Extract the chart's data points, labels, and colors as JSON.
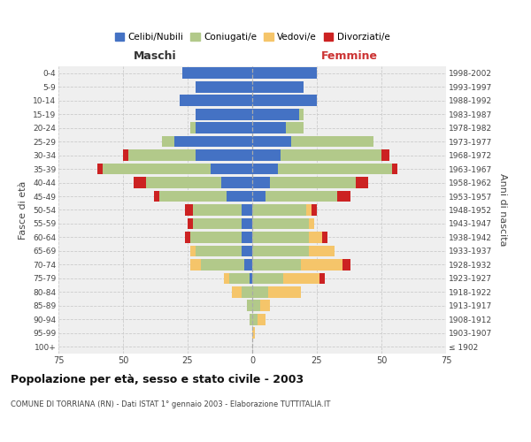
{
  "age_groups": [
    "100+",
    "95-99",
    "90-94",
    "85-89",
    "80-84",
    "75-79",
    "70-74",
    "65-69",
    "60-64",
    "55-59",
    "50-54",
    "45-49",
    "40-44",
    "35-39",
    "30-34",
    "25-29",
    "20-24",
    "15-19",
    "10-14",
    "5-9",
    "0-4"
  ],
  "birth_years": [
    "≤ 1902",
    "1903-1907",
    "1908-1912",
    "1913-1917",
    "1918-1922",
    "1923-1927",
    "1928-1932",
    "1933-1937",
    "1938-1942",
    "1943-1947",
    "1948-1952",
    "1953-1957",
    "1958-1962",
    "1963-1967",
    "1968-1972",
    "1973-1977",
    "1978-1982",
    "1983-1987",
    "1988-1992",
    "1993-1997",
    "1998-2002"
  ],
  "colors": {
    "celibe": "#4472c4",
    "coniugato": "#b2c98a",
    "vedovo": "#f5c56a",
    "divorziato": "#cc2222"
  },
  "maschi": {
    "celibe": [
      0,
      0,
      0,
      0,
      0,
      1,
      3,
      4,
      4,
      4,
      4,
      10,
      12,
      16,
      22,
      30,
      22,
      22,
      28,
      22,
      27
    ],
    "coniugato": [
      0,
      0,
      1,
      2,
      4,
      8,
      17,
      18,
      20,
      19,
      19,
      26,
      29,
      42,
      26,
      5,
      2,
      0,
      0,
      0,
      0
    ],
    "vedovo": [
      0,
      0,
      0,
      0,
      4,
      2,
      4,
      2,
      0,
      0,
      0,
      0,
      0,
      0,
      0,
      0,
      0,
      0,
      0,
      0,
      0
    ],
    "divorziato": [
      0,
      0,
      0,
      0,
      0,
      0,
      0,
      0,
      2,
      2,
      3,
      2,
      5,
      2,
      2,
      0,
      0,
      0,
      0,
      0,
      0
    ]
  },
  "femmine": {
    "celibe": [
      0,
      0,
      0,
      0,
      0,
      0,
      0,
      0,
      0,
      0,
      0,
      5,
      7,
      10,
      11,
      15,
      13,
      18,
      25,
      20,
      25
    ],
    "coniugato": [
      0,
      0,
      2,
      3,
      6,
      12,
      19,
      22,
      22,
      22,
      21,
      28,
      33,
      44,
      39,
      32,
      7,
      2,
      0,
      0,
      0
    ],
    "vedova": [
      0,
      1,
      3,
      4,
      13,
      14,
      16,
      10,
      5,
      2,
      2,
      0,
      0,
      0,
      0,
      0,
      0,
      0,
      0,
      0,
      0
    ],
    "divorziata": [
      0,
      0,
      0,
      0,
      0,
      2,
      3,
      0,
      2,
      0,
      2,
      5,
      5,
      2,
      3,
      0,
      0,
      0,
      0,
      0,
      0
    ]
  },
  "xlim": 75,
  "title": "Popolazione per età, sesso e stato civile - 2003",
  "subtitle": "COMUNE DI TORRIANA (RN) - Dati ISTAT 1° gennaio 2003 - Elaborazione TUTTITALIA.IT",
  "ylabel_left": "Fasce di età",
  "ylabel_right": "Anni di nascita",
  "xlabel_maschi": "Maschi",
  "xlabel_femmine": "Femmine",
  "legend_labels": [
    "Celibi/Nubili",
    "Coniugati/e",
    "Vedovi/e",
    "Divorziati/e"
  ],
  "legend_colors": [
    "#4472c4",
    "#b2c98a",
    "#f5c56a",
    "#cc2222"
  ],
  "background_color": "#ffffff",
  "plot_bg_color": "#efefef"
}
